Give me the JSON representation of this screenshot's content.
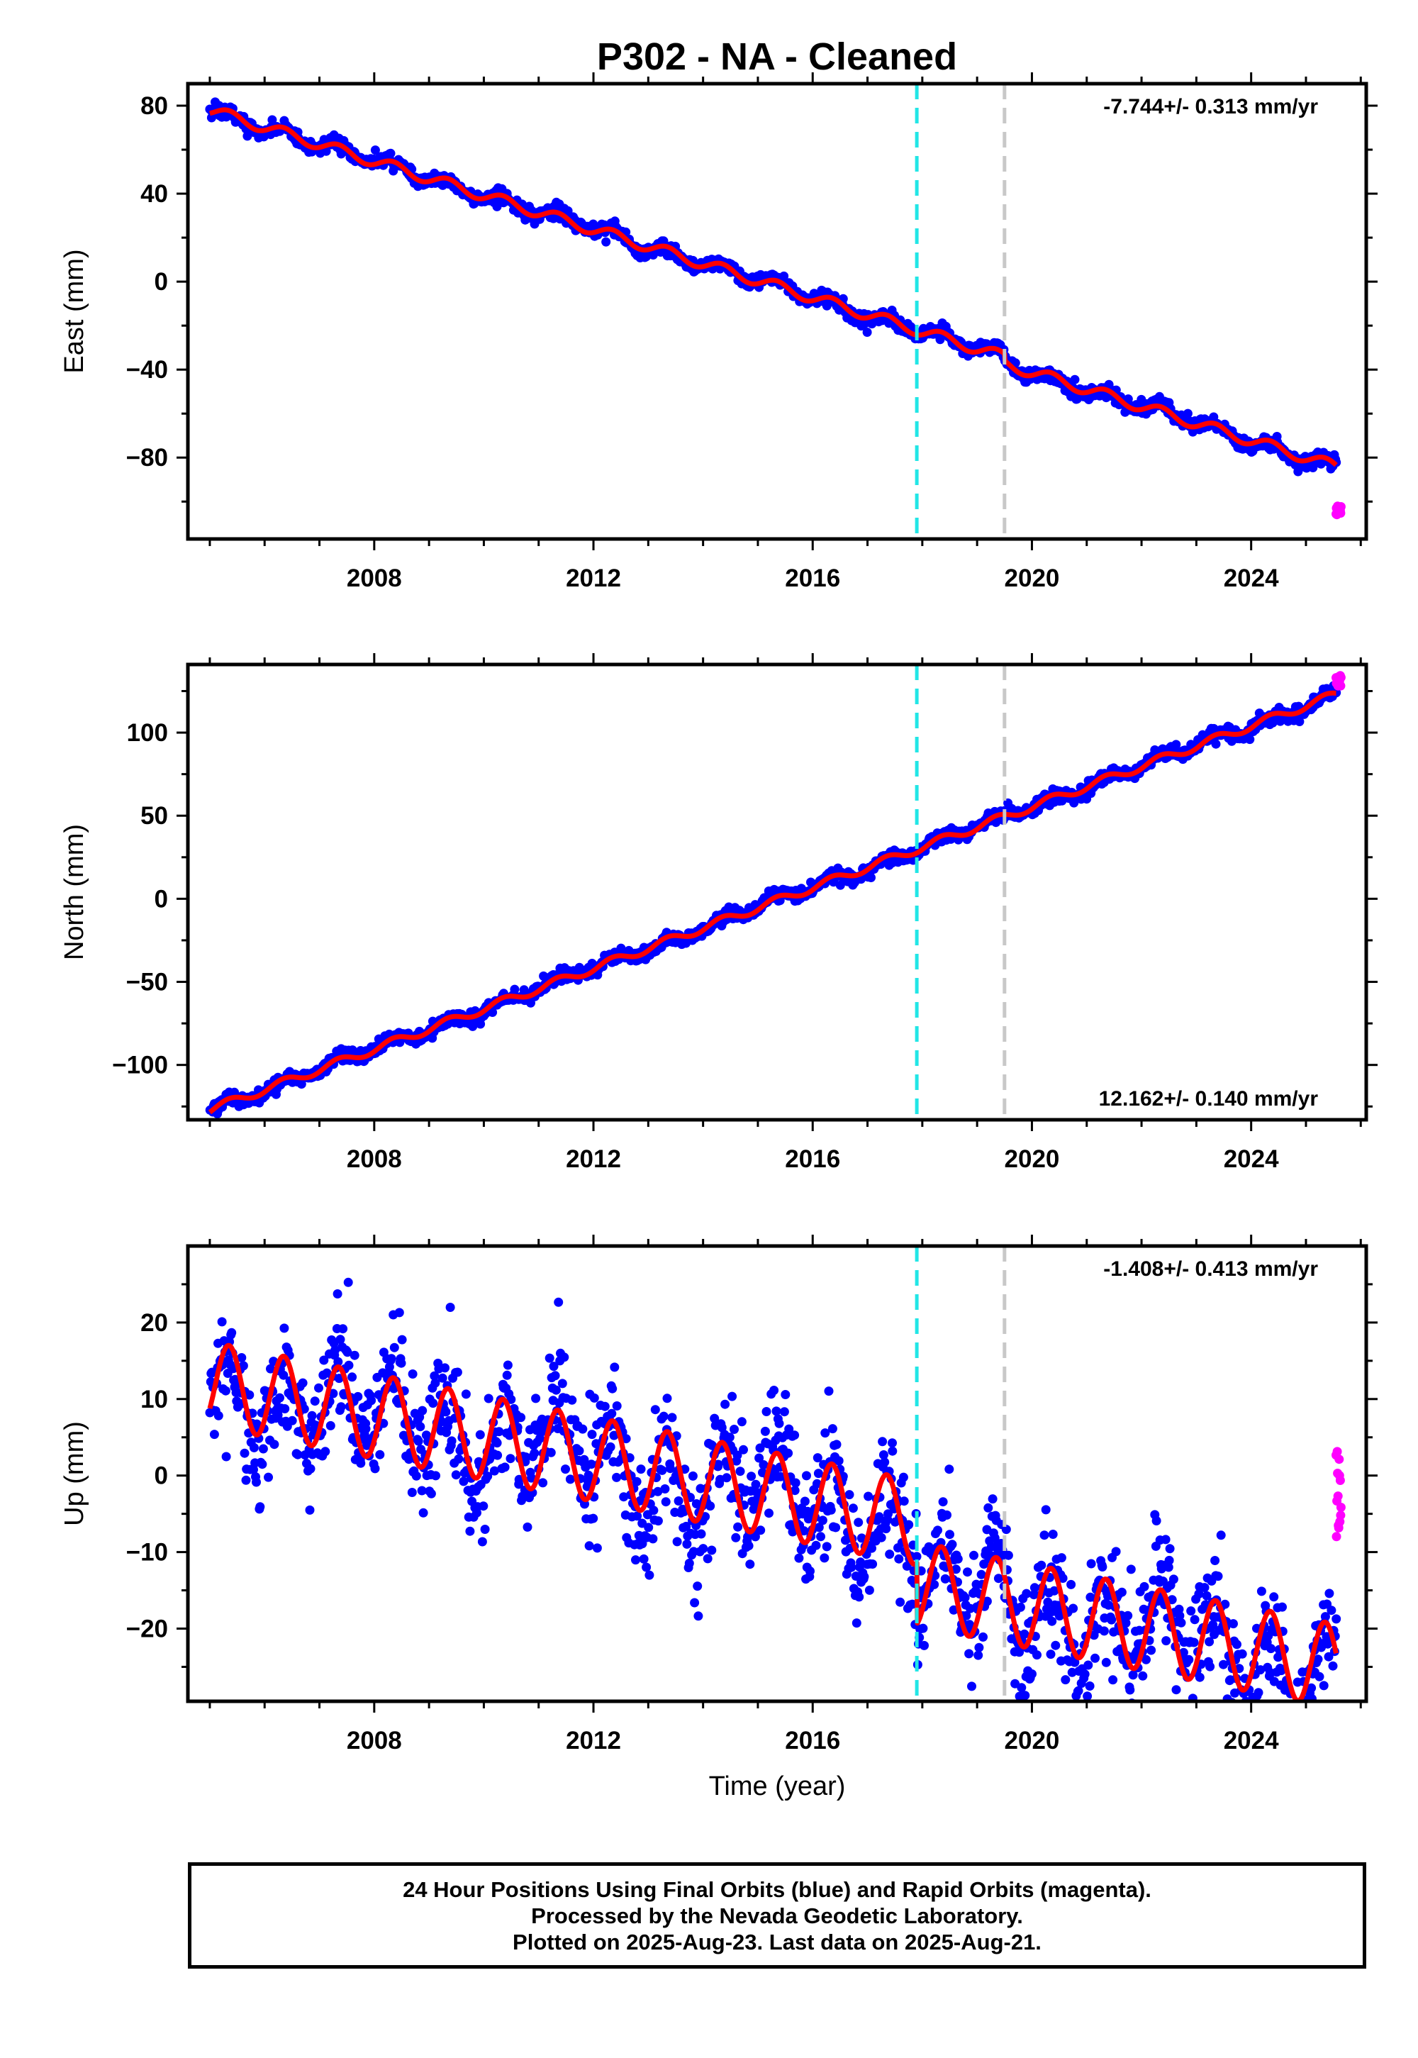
{
  "title": "P302  - NA - Cleaned",
  "colors": {
    "final_orbits": "#0000ff",
    "rapid_orbits": "#ff00ff",
    "model_fit": "#ff0000",
    "line_cyan": "#22e6e6",
    "line_gray": "#c8c8c8"
  },
  "chart_data": [
    {
      "type": "scatter",
      "name": "east",
      "ylabel": "East (mm)",
      "xlim": [
        2004.6,
        2026.1
      ],
      "ylim": [
        -117,
        90
      ],
      "x_ticks": [
        2008,
        2012,
        2016,
        2020,
        2024
      ],
      "y_ticks": [
        80,
        40,
        0,
        -40,
        -80
      ],
      "y_tick_labels": [
        "80",
        "40",
        "0",
        "−40",
        "−80"
      ],
      "rate_label": "-7.744+/- 0.313 mm/yr",
      "rate_label_position": "top-right",
      "vertical_lines": [
        {
          "x": 2017.9,
          "color": "cyan",
          "style": "dashed"
        },
        {
          "x": 2019.5,
          "color": "gray",
          "style": "dashed"
        }
      ],
      "trend": {
        "start_x": 2005.0,
        "start_y": 78,
        "rate": -7.744
      },
      "seasonal": {
        "amplitude": 2.5,
        "noise": 1.6
      },
      "offsets": [
        {
          "x": 2019.5,
          "dy": -3
        }
      ],
      "data_start": 2005.0,
      "data_end": 2025.55,
      "rapid_start": 2025.55,
      "rapid_end": 2025.64,
      "rapid_y": [
        -106,
        -102
      ]
    },
    {
      "type": "scatter",
      "name": "north",
      "ylabel": "North (mm)",
      "xlim": [
        2004.6,
        2026.1
      ],
      "ylim": [
        -133,
        141
      ],
      "x_ticks": [
        2008,
        2012,
        2016,
        2020,
        2024
      ],
      "y_ticks": [
        100,
        50,
        0,
        -50,
        -100
      ],
      "y_tick_labels": [
        "100",
        "50",
        "0",
        "−50",
        "−100"
      ],
      "rate_label": "12.162+/- 0.140 mm/yr",
      "rate_label_position": "bottom-right",
      "vertical_lines": [
        {
          "x": 2017.9,
          "color": "cyan",
          "style": "dashed"
        },
        {
          "x": 2019.5,
          "color": "gray",
          "style": "dashed"
        }
      ],
      "trend": {
        "start_x": 2005.0,
        "start_y": -127,
        "rate": 12.162
      },
      "seasonal": {
        "amplitude": 2.5,
        "noise": 2.0
      },
      "offsets": [],
      "data_start": 2005.0,
      "data_end": 2025.55,
      "rapid_start": 2025.55,
      "rapid_end": 2025.64,
      "rapid_y": [
        128,
        135
      ]
    },
    {
      "type": "scatter",
      "name": "up",
      "ylabel": "Up (mm)",
      "xlabel": "Time (year)",
      "xlim": [
        2004.6,
        2026.1
      ],
      "ylim": [
        -29.5,
        30
      ],
      "x_ticks": [
        2008,
        2012,
        2016,
        2020,
        2024
      ],
      "y_ticks": [
        20,
        10,
        0,
        -10,
        -20
      ],
      "y_tick_labels": [
        "20",
        "10",
        "0",
        "−10",
        "−20"
      ],
      "rate_label": "-1.408+/- 0.413 mm/yr",
      "rate_label_position": "top-right",
      "vertical_lines": [
        {
          "x": 2017.9,
          "color": "cyan",
          "style": "dashed"
        },
        {
          "x": 2019.5,
          "color": "gray",
          "style": "dashed"
        }
      ],
      "trend": {
        "start_x": 2005.0,
        "start_y": 12,
        "rate": -1.408
      },
      "seasonal": {
        "amplitude": 5.5,
        "noise": 4.0
      },
      "offsets": [
        {
          "x": 2017.9,
          "dy": -8
        }
      ],
      "data_start": 2005.0,
      "data_end": 2025.55,
      "rapid_start": 2025.55,
      "rapid_end": 2025.64,
      "rapid_y": [
        -9,
        4
      ]
    }
  ],
  "footer": {
    "line1": "24 Hour Positions Using Final Orbits (blue) and Rapid Orbits (magenta).",
    "line2": "Processed by the Nevada Geodetic Laboratory.",
    "line3": "Plotted on 2025-Aug-23. Last data on 2025-Aug-21."
  }
}
